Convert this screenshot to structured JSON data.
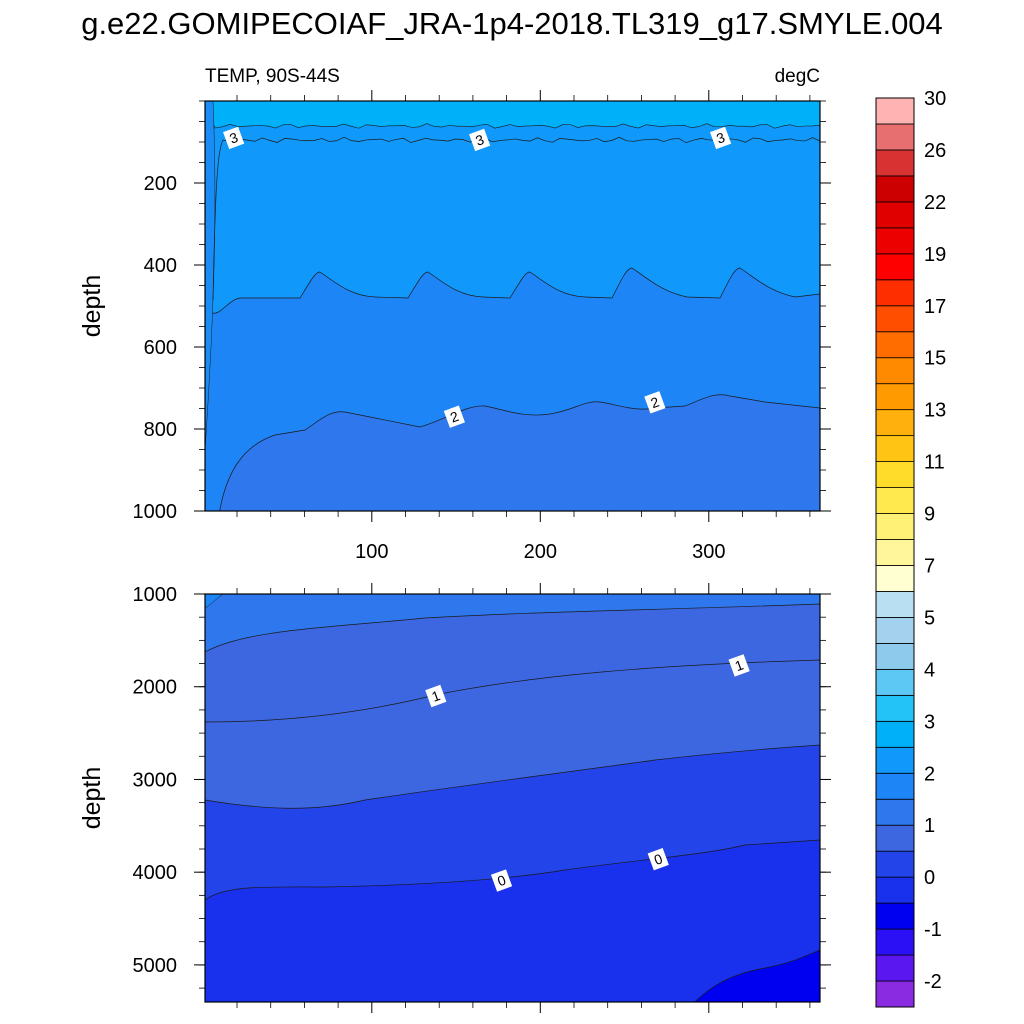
{
  "chart_data": {
    "type": "contour",
    "title": "g.e22.GOMIPECOIAF_JRA-1p4-2018.TL319_g17.SMYLE.004",
    "variable_label": "TEMP, 90S-44S",
    "units_label": "degC",
    "x_ticks": [
      "100",
      "200",
      "300"
    ],
    "x_tick_values": [
      100,
      200,
      300
    ],
    "xlim": [
      1,
      366
    ],
    "panels": [
      {
        "name": "upper",
        "ylabel": "depth",
        "ylim": [
          1000,
          0
        ],
        "y_ticks": [
          "200",
          "400",
          "600",
          "800",
          "1000"
        ],
        "y_tick_values": [
          200,
          400,
          600,
          800,
          1000
        ],
        "contour_labels": [
          {
            "text": "3",
            "x": 18,
            "y": 90
          },
          {
            "text": "3",
            "x": 164,
            "y": 95
          },
          {
            "text": "3",
            "x": 307,
            "y": 90
          },
          {
            "text": "2",
            "x": 149,
            "y": 770
          },
          {
            "text": "2",
            "x": 268,
            "y": 735
          }
        ]
      },
      {
        "name": "lower",
        "ylabel": "depth",
        "ylim": [
          5400,
          1000
        ],
        "y_ticks": [
          "1000",
          "2000",
          "3000",
          "4000",
          "5000"
        ],
        "y_tick_values": [
          1000,
          2000,
          3000,
          4000,
          5000
        ],
        "contour_labels": [
          {
            "text": "1",
            "x": 138,
            "y": 2100
          },
          {
            "text": "1",
            "x": 318,
            "y": 1770
          },
          {
            "text": "0",
            "x": 177,
            "y": 4090
          },
          {
            "text": "0",
            "x": 270,
            "y": 3860
          }
        ]
      }
    ],
    "colorbar": {
      "tick_labels": [
        "-2",
        "-1",
        "0",
        "1",
        "2",
        "3",
        "4",
        "5",
        "7",
        "9",
        "11",
        "13",
        "15",
        "17",
        "19",
        "22",
        "26",
        "30"
      ],
      "colors": [
        "#8a2be2",
        "#5a17f0",
        "#2b0ff5",
        "#0000f0",
        "#1930ec",
        "#2244e8",
        "#3d67e0",
        "#2e77ec",
        "#1e85f7",
        "#1098fa",
        "#00b0f8",
        "#23c3f8",
        "#5ec8f5",
        "#8ecaeb",
        "#a4d2ee",
        "#b9e0f2",
        "#ffffd2",
        "#fff69c",
        "#fff176",
        "#ffe94e",
        "#ffdc2a",
        "#ffc414",
        "#ffb00c",
        "#ff9a00",
        "#ff8a00",
        "#ff6d00",
        "#ff4e00",
        "#ff2e00",
        "#ff0000",
        "#ec0000",
        "#e00000",
        "#cc0000",
        "#d83232",
        "#e86f6f",
        "#ffb3b3"
      ]
    }
  }
}
